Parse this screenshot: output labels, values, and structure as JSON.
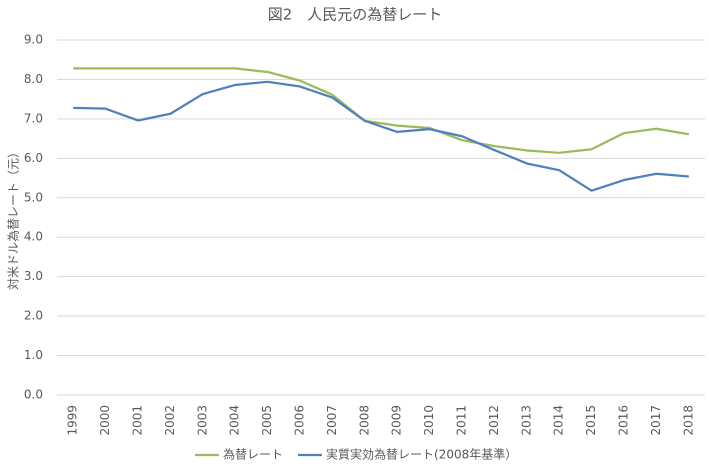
{
  "chart_data": {
    "type": "line",
    "title": "図2　人民元の為替レート",
    "y_label": "対米ドル為替レート（元）",
    "categories": [
      "1999",
      "2000",
      "2001",
      "2002",
      "2003",
      "2004",
      "2005",
      "2006",
      "2007",
      "2008",
      "2009",
      "2010",
      "2011",
      "2012",
      "2013",
      "2014",
      "2015",
      "2016",
      "2017",
      "2018"
    ],
    "series": [
      {
        "name": "為替レート",
        "color": "#9bbb59",
        "values": [
          8.28,
          8.28,
          8.28,
          8.28,
          8.28,
          8.28,
          8.19,
          7.97,
          7.61,
          6.95,
          6.83,
          6.77,
          6.46,
          6.31,
          6.2,
          6.14,
          6.23,
          6.64,
          6.75,
          6.61
        ]
      },
      {
        "name": "実質実効為替レート(2008年基準）",
        "color": "#4f81bd",
        "values": [
          7.28,
          7.26,
          6.96,
          7.13,
          7.63,
          7.86,
          7.94,
          7.82,
          7.54,
          6.95,
          6.67,
          6.74,
          6.56,
          6.21,
          5.87,
          5.7,
          5.18,
          5.45,
          5.61,
          5.54
        ]
      }
    ],
    "ylim": [
      0,
      9
    ],
    "yticks": [
      {
        "value": 0,
        "label": "0.0"
      },
      {
        "value": 1,
        "label": "1.0"
      },
      {
        "value": 2,
        "label": "2.0"
      },
      {
        "value": 3,
        "label": "3.0"
      },
      {
        "value": 4,
        "label": "4.0"
      },
      {
        "value": 5,
        "label": "5.0"
      },
      {
        "value": 6,
        "label": "6.0"
      },
      {
        "value": 7,
        "label": "7.0"
      },
      {
        "value": 8,
        "label": "8.0"
      },
      {
        "value": 9,
        "label": "9.0"
      }
    ],
    "grid": true,
    "legend": "bottom"
  }
}
